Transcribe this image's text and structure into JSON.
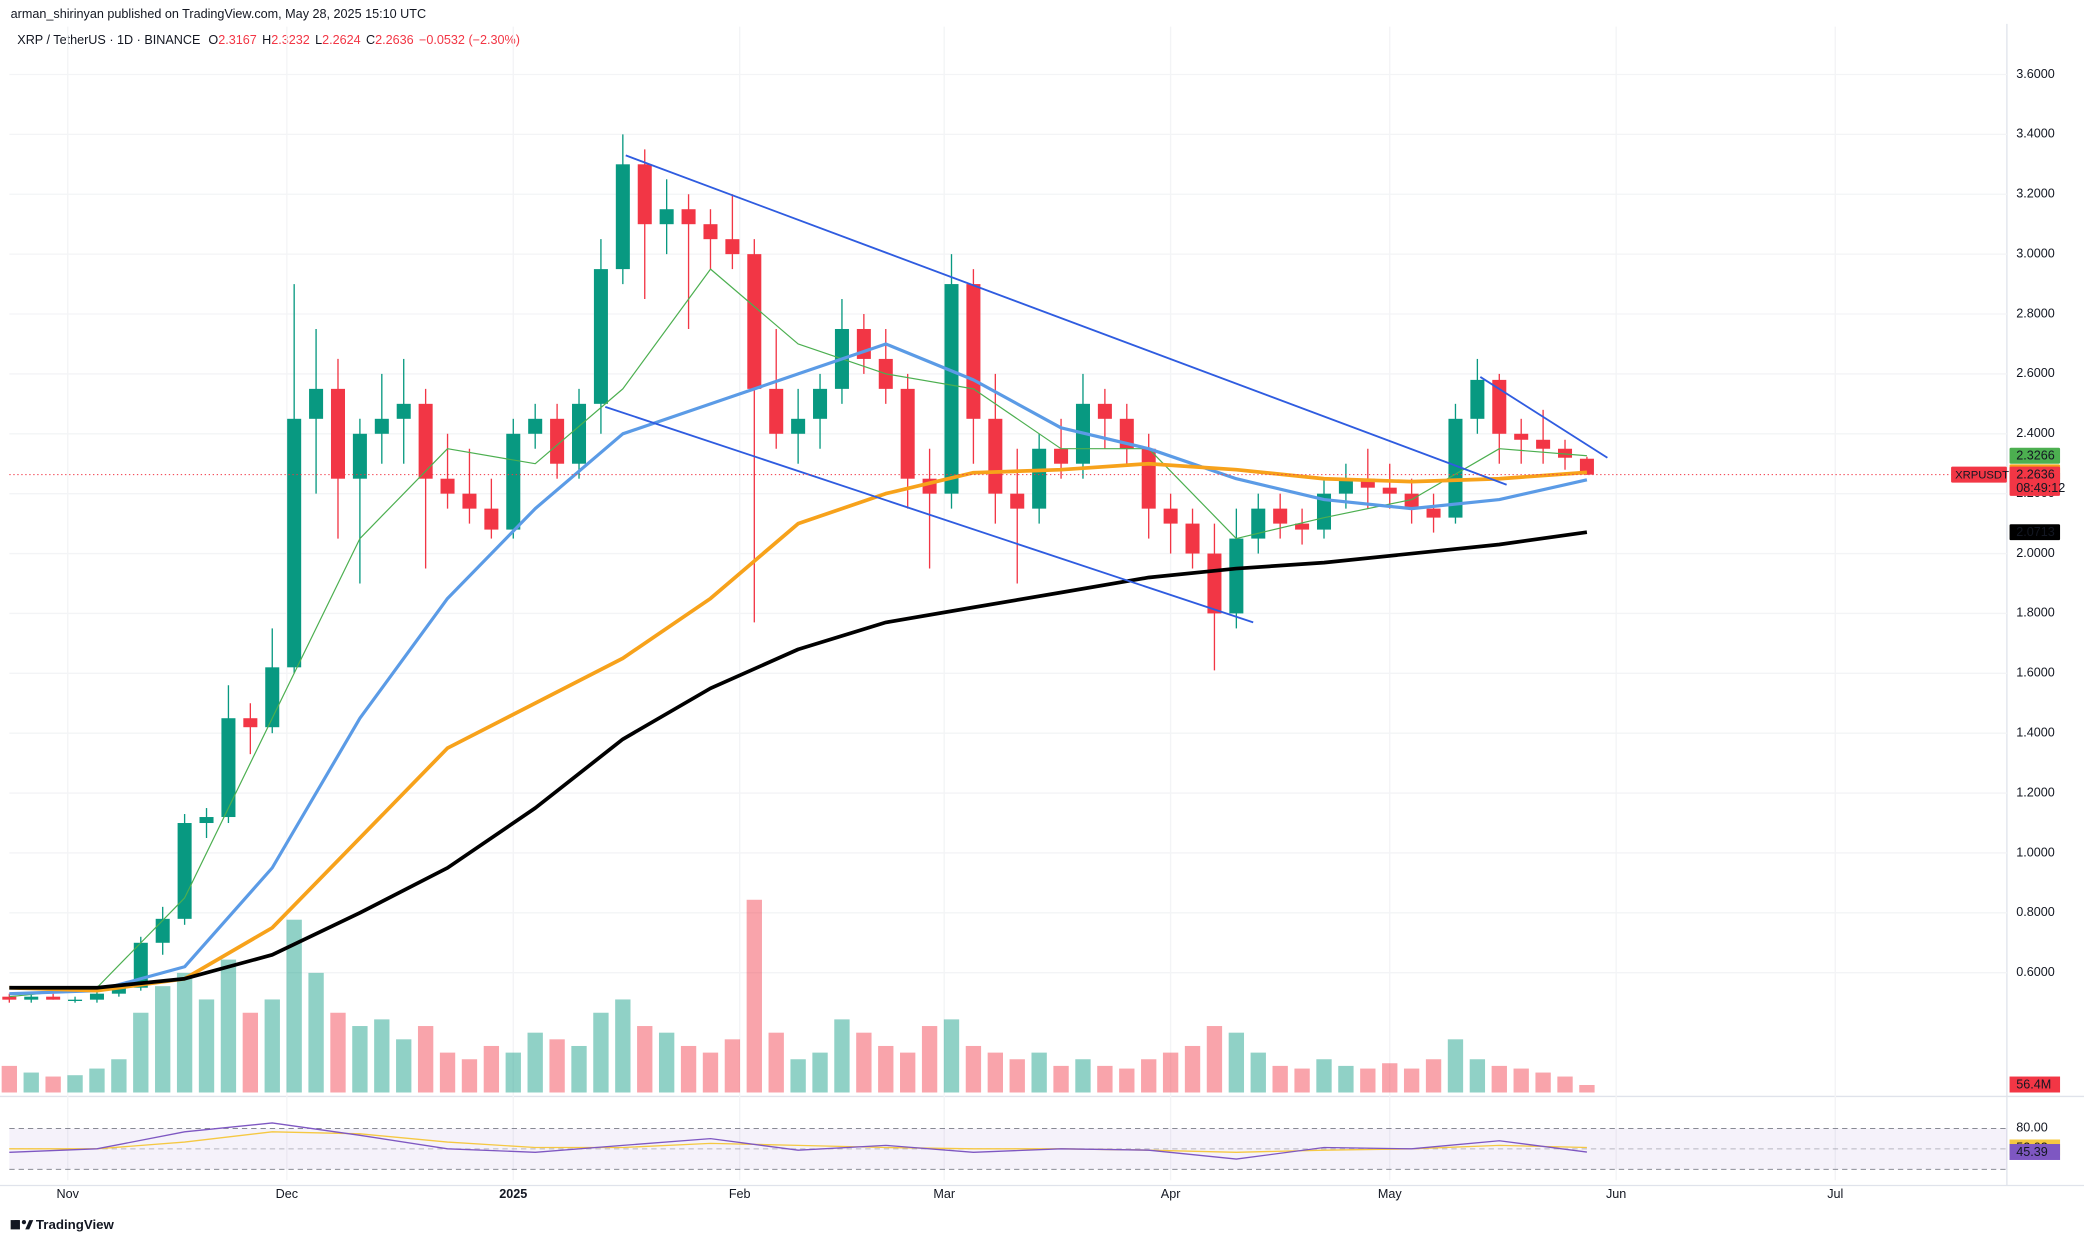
{
  "header": {
    "publisher": "arman_shirinyan published on TradingView.com, May 28, 2025 15:10 UTC",
    "symbol": "XRP / TetherUS · 1D · BINANCE",
    "ohlc_prefixes": [
      "O",
      "H",
      "L",
      "C"
    ],
    "change": "−0.0532 (−2.30%)"
  },
  "footer": {
    "brand": "TradingView"
  },
  "chart_data": {
    "type": "candlestick",
    "xlim": [
      -8,
      265.5
    ],
    "xticks": [
      {
        "value": 0,
        "label": "Nov"
      },
      {
        "value": 30,
        "label": "Dec"
      },
      {
        "value": 61,
        "label": "2025"
      },
      {
        "value": 92,
        "label": "Feb"
      },
      {
        "value": 120,
        "label": "Mar"
      },
      {
        "value": 151,
        "label": "Apr"
      },
      {
        "value": 181,
        "label": "May"
      },
      {
        "value": 212,
        "label": "Jun"
      },
      {
        "value": 242,
        "label": "Jul"
      }
    ],
    "ylim": [
      0.2,
      3.76
    ],
    "yticks": [
      {
        "value": 0.6,
        "label": "0.6000"
      },
      {
        "value": 0.8,
        "label": "0.8000"
      },
      {
        "value": 1.0,
        "label": "1.0000"
      },
      {
        "value": 1.2,
        "label": "1.2000"
      },
      {
        "value": 1.4,
        "label": "1.4000"
      },
      {
        "value": 1.6,
        "label": "1.6000"
      },
      {
        "value": 1.8,
        "label": "1.8000"
      },
      {
        "value": 2.0,
        "label": "2.0000"
      },
      {
        "value": 2.2,
        "label": "2.2000"
      },
      {
        "value": 2.4,
        "label": "2.4000"
      },
      {
        "value": 2.6,
        "label": "2.6000"
      },
      {
        "value": 2.8,
        "label": "2.8000"
      },
      {
        "value": 3.0,
        "label": "3.0000"
      },
      {
        "value": 3.2,
        "label": "3.2000"
      },
      {
        "value": 3.4,
        "label": "3.4000"
      },
      {
        "value": 3.6,
        "label": "3.6000"
      }
    ],
    "grid": true,
    "up_color": "#089981",
    "down_color": "#f23645",
    "candles": {
      "x": [
        -8,
        -5,
        -2,
        1,
        4,
        7,
        10,
        13,
        16,
        19,
        22,
        25,
        28,
        31,
        34,
        37,
        40,
        43,
        46,
        49,
        52,
        55,
        58,
        61,
        64,
        67,
        70,
        73,
        76,
        79,
        82,
        85,
        88,
        91,
        94,
        97,
        100,
        103,
        106,
        109,
        112,
        115,
        118,
        121,
        124,
        127,
        130,
        133,
        136,
        139,
        142,
        145,
        148,
        151,
        154,
        157,
        160,
        163,
        166,
        169,
        172,
        175,
        178,
        181,
        184,
        187,
        190,
        193,
        196,
        199,
        202,
        205,
        208
      ],
      "open": [
        0.52,
        0.51,
        0.52,
        0.51,
        0.51,
        0.53,
        0.55,
        0.7,
        0.78,
        1.1,
        1.12,
        1.45,
        1.42,
        1.62,
        2.45,
        2.55,
        2.25,
        2.4,
        2.45,
        2.5,
        2.25,
        2.2,
        2.15,
        2.08,
        2.4,
        2.45,
        2.3,
        2.5,
        2.95,
        3.3,
        3.1,
        3.15,
        3.1,
        3.05,
        3.0,
        2.55,
        2.4,
        2.45,
        2.55,
        2.75,
        2.65,
        2.55,
        2.25,
        2.2,
        2.9,
        2.45,
        2.2,
        2.15,
        2.35,
        2.3,
        2.5,
        2.45,
        2.35,
        2.15,
        2.1,
        2.0,
        1.8,
        2.05,
        2.15,
        2.1,
        2.08,
        2.2,
        2.25,
        2.22,
        2.2,
        2.15,
        2.12,
        2.45,
        2.58,
        2.4,
        2.38,
        2.35,
        2.3167
      ],
      "high": [
        0.53,
        0.53,
        0.53,
        0.52,
        0.54,
        0.56,
        0.72,
        0.82,
        1.13,
        1.15,
        1.56,
        1.5,
        1.75,
        2.9,
        2.75,
        2.65,
        2.45,
        2.6,
        2.65,
        2.55,
        2.4,
        2.35,
        2.25,
        2.45,
        2.5,
        2.5,
        2.55,
        3.05,
        3.4,
        3.35,
        3.25,
        3.2,
        3.15,
        3.2,
        3.05,
        2.75,
        2.55,
        2.6,
        2.85,
        2.8,
        2.75,
        2.6,
        2.35,
        3.0,
        2.95,
        2.6,
        2.35,
        2.4,
        2.45,
        2.6,
        2.55,
        2.5,
        2.4,
        2.2,
        2.15,
        2.1,
        2.15,
        2.2,
        2.2,
        2.15,
        2.25,
        2.3,
        2.35,
        2.3,
        2.25,
        2.2,
        2.5,
        2.65,
        2.6,
        2.45,
        2.48,
        2.38,
        2.3232
      ],
      "low": [
        0.5,
        0.5,
        0.51,
        0.5,
        0.5,
        0.52,
        0.54,
        0.66,
        0.76,
        1.05,
        1.1,
        1.33,
        1.4,
        1.6,
        2.2,
        2.05,
        1.9,
        2.3,
        2.3,
        1.95,
        2.15,
        2.1,
        2.05,
        2.05,
        2.35,
        2.25,
        2.25,
        2.4,
        2.9,
        2.85,
        3.0,
        2.75,
        2.95,
        2.95,
        1.77,
        2.35,
        2.3,
        2.35,
        2.5,
        2.6,
        2.5,
        2.15,
        1.95,
        2.15,
        2.3,
        2.1,
        1.9,
        2.1,
        2.25,
        2.25,
        2.35,
        2.3,
        2.05,
        2.0,
        1.95,
        1.61,
        1.75,
        2.0,
        2.05,
        2.03,
        2.05,
        2.15,
        2.15,
        2.15,
        2.1,
        2.07,
        2.1,
        2.4,
        2.3,
        2.3,
        2.3,
        2.28,
        2.2624
      ],
      "close": [
        0.51,
        0.52,
        0.51,
        0.51,
        0.53,
        0.55,
        0.7,
        0.78,
        1.1,
        1.12,
        1.45,
        1.42,
        1.62,
        2.45,
        2.55,
        2.25,
        2.4,
        2.45,
        2.5,
        2.25,
        2.2,
        2.15,
        2.08,
        2.4,
        2.45,
        2.3,
        2.5,
        2.95,
        3.3,
        3.1,
        3.15,
        3.1,
        3.05,
        3.0,
        2.55,
        2.4,
        2.45,
        2.55,
        2.75,
        2.65,
        2.55,
        2.25,
        2.2,
        2.9,
        2.45,
        2.2,
        2.15,
        2.35,
        2.3,
        2.5,
        2.45,
        2.35,
        2.15,
        2.1,
        2.0,
        1.8,
        2.05,
        2.15,
        2.1,
        2.08,
        2.2,
        2.25,
        2.22,
        2.2,
        2.15,
        2.12,
        2.45,
        2.58,
        2.4,
        2.38,
        2.35,
        2.32,
        2.2636
      ]
    },
    "symbol_tag": "XRPUSDT",
    "countdown": "08:49:12",
    "volume": {
      "ylim": [
        0,
        1500
      ],
      "values": [
        200,
        150,
        120,
        130,
        180,
        250,
        600,
        800,
        900,
        700,
        1000,
        600,
        700,
        1300,
        900,
        600,
        500,
        550,
        400,
        500,
        300,
        250,
        350,
        300,
        450,
        400,
        350,
        600,
        700,
        500,
        450,
        350,
        300,
        400,
        1450,
        450,
        250,
        300,
        550,
        450,
        350,
        300,
        500,
        550,
        350,
        300,
        250,
        300,
        200,
        250,
        200,
        180,
        250,
        300,
        350,
        500,
        450,
        300,
        200,
        180,
        250,
        200,
        180,
        220,
        180,
        250,
        400,
        250,
        200,
        180,
        150,
        120,
        56.4
      ],
      "last_value_label": "56.4M"
    },
    "ma_x": [
      -8,
      4,
      16,
      28,
      40,
      52,
      64,
      76,
      88,
      100,
      112,
      124,
      136,
      148,
      160,
      172,
      184,
      196,
      208
    ],
    "moving_averages": [
      {
        "color": "#4caf50",
        "width": 0.9,
        "values": [
          0.52,
          0.55,
          0.85,
          1.45,
          2.05,
          2.35,
          2.3,
          2.55,
          2.95,
          2.7,
          2.6,
          2.55,
          2.35,
          2.35,
          2.05,
          2.12,
          2.18,
          2.35,
          2.3266
        ]
      },
      {
        "color": "#5b9be6",
        "width": 2.4,
        "values": [
          0.53,
          0.54,
          0.62,
          0.95,
          1.45,
          1.85,
          2.15,
          2.4,
          2.5,
          2.6,
          2.7,
          2.58,
          2.42,
          2.35,
          2.25,
          2.18,
          2.15,
          2.18,
          2.2463
        ]
      },
      {
        "color": "#f7a21b",
        "width": 2.8,
        "values": [
          0.55,
          0.54,
          0.58,
          0.75,
          1.05,
          1.35,
          1.5,
          1.65,
          1.85,
          2.1,
          2.2,
          2.27,
          2.28,
          2.3,
          2.28,
          2.25,
          2.24,
          2.25,
          2.2712
        ]
      },
      {
        "color": "#000000",
        "width": 2.8,
        "values": [
          0.55,
          0.55,
          0.58,
          0.66,
          0.8,
          0.95,
          1.15,
          1.38,
          1.55,
          1.68,
          1.77,
          1.82,
          1.87,
          1.92,
          1.95,
          1.97,
          2.0,
          2.03,
          2.0713
        ]
      }
    ],
    "trendlines": [
      {
        "color": "#2f5ce0",
        "x": [
          76.4,
          197
        ],
        "y": [
          3.33,
          2.23
        ]
      },
      {
        "color": "#2f5ce0",
        "x": [
          73.6,
          162.3
        ],
        "y": [
          2.49,
          1.77
        ]
      },
      {
        "color": "#2f5ce0",
        "x": [
          193.4,
          210.8
        ],
        "y": [
          2.59,
          2.32
        ]
      }
    ],
    "rsi": {
      "ylim": [
        4,
        121
      ],
      "yticks": [
        {
          "value": 80,
          "label": "80.00"
        }
      ],
      "levels": [
        50,
        20
      ],
      "series": [
        {
          "color": "#f5c842",
          "values": [
            50,
            50,
            60,
            75,
            72,
            60,
            52,
            52,
            58,
            55,
            52,
            50,
            50,
            48,
            45,
            48,
            50,
            55,
            52.03
          ]
        },
        {
          "color": "#7e57c2",
          "values": [
            45,
            50,
            75,
            88,
            70,
            50,
            45,
            55,
            65,
            48,
            55,
            45,
            50,
            48,
            35,
            52,
            50,
            62,
            45.39
          ]
        }
      ]
    }
  }
}
